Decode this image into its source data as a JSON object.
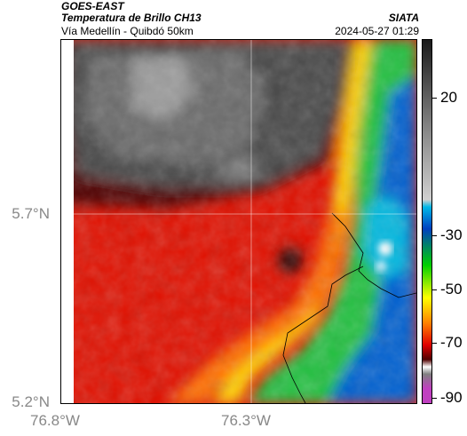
{
  "header": {
    "satellite": "GOES-EAST",
    "product": "Temperatura de Brillo CH13",
    "route": "Vía Medellín - Quibdó 50km",
    "org": "SIATA",
    "datetime": "2024-05-27 01:29"
  },
  "axes": {
    "y_ticks": [
      "5.7°N",
      "5.2°N"
    ],
    "x_ticks": [
      "76.8°W",
      "76.3°W"
    ]
  },
  "colorbar": {
    "labels": [
      "20",
      "-30",
      "-50",
      "-70",
      "-90"
    ],
    "colors": [
      "#1a1a1a",
      "#888888",
      "#d0d0d0",
      "#00b8e8",
      "#0040c0",
      "#00d000",
      "#ffff00",
      "#ff8000",
      "#e00000",
      "#500000",
      "#c040c0"
    ]
  }
}
